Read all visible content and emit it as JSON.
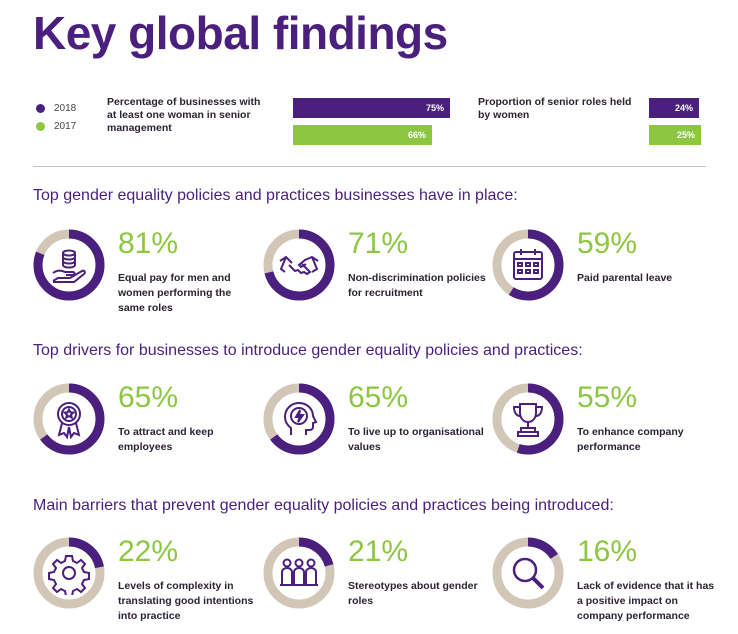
{
  "title": "Key global findings",
  "legend": [
    {
      "label": "2018",
      "color": "#4a1f7d"
    },
    {
      "label": "2017",
      "color": "#8dc641"
    }
  ],
  "metrics": [
    {
      "label": "Percentage of businesses with at least one woman in senior management",
      "bars": [
        {
          "year": "2018",
          "value": 75,
          "text": "75%",
          "color": "#4a1f7d"
        },
        {
          "year": "2017",
          "value": 66,
          "text": "66%",
          "color": "#8dc641"
        }
      ]
    },
    {
      "label": "Proportion of senior roles held by women",
      "bars": [
        {
          "year": "2018",
          "value": 24,
          "text": "24%",
          "color": "#4a1f7d"
        },
        {
          "year": "2017",
          "value": 25,
          "text": "25%",
          "color": "#8dc641"
        }
      ]
    }
  ],
  "sections": [
    {
      "title": "Top gender equality policies and practices businesses have in place:",
      "items": [
        {
          "value": 81,
          "pct": "81%",
          "desc": "Equal pay for men and women performing the same roles",
          "icon": "coins-hand-icon"
        },
        {
          "value": 71,
          "pct": "71%",
          "desc": "Non-discrimination policies for recruitment",
          "icon": "handshake-icon"
        },
        {
          "value": 59,
          "pct": "59%",
          "desc": "Paid parental leave",
          "icon": "calendar-icon"
        }
      ]
    },
    {
      "title": "Top drivers for businesses to introduce gender equality policies and practices:",
      "items": [
        {
          "value": 65,
          "pct": "65%",
          "desc": "To attract and keep employees",
          "icon": "award-ribbon-icon"
        },
        {
          "value": 65,
          "pct": "65%",
          "desc": "To live up to organisational values",
          "icon": "head-lightning-icon"
        },
        {
          "value": 55,
          "pct": "55%",
          "desc": "To enhance company performance",
          "icon": "trophy-icon"
        }
      ]
    },
    {
      "title": "Main barriers that prevent gender equality policies and practices being introduced:",
      "items": [
        {
          "value": 22,
          "pct": "22%",
          "desc": "Levels of complexity in translating good intentions into practice",
          "icon": "gear-icon"
        },
        {
          "value": 21,
          "pct": "21%",
          "desc": "Stereotypes about gender roles",
          "icon": "people-group-icon"
        },
        {
          "value": 16,
          "pct": "16%",
          "desc": "Lack of evidence that it has a positive impact on company performance",
          "icon": "magnifier-icon"
        }
      ]
    }
  ],
  "colors": {
    "purple": "#4a1f7d",
    "green": "#8dc641",
    "ring_track": "#d2c7b7"
  }
}
